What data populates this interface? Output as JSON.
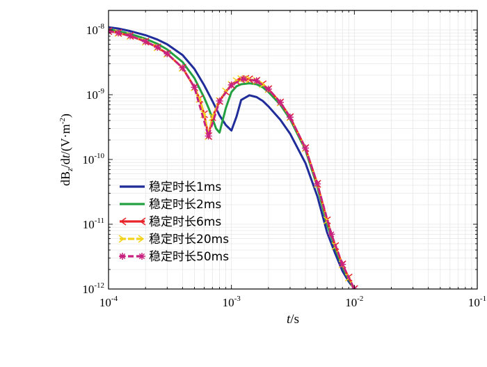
{
  "chart_data": {
    "type": "line",
    "title": "",
    "xlabel": {
      "italic": "t",
      "rest": "/s"
    },
    "ylabel": {
      "a": "dB",
      "sub": "z",
      "b": "/d",
      "c": "t",
      "d": "/(V·m",
      "sup": "-2",
      "e": ")"
    },
    "xscale": "log",
    "yscale": "log",
    "xlim": [
      0.0001,
      0.1
    ],
    "ylim": [
      1e-12,
      2e-08
    ],
    "grid": true,
    "legend_position": "lower-left",
    "x_ticks": [
      {
        "value": 0.0001,
        "base": "10",
        "exp": "-4"
      },
      {
        "value": 0.001,
        "base": "10",
        "exp": "-3"
      },
      {
        "value": 0.01,
        "base": "10",
        "exp": "-2"
      },
      {
        "value": 0.1,
        "base": "10",
        "exp": "-1"
      }
    ],
    "y_ticks": [
      {
        "value": 1e-12,
        "base": "10",
        "exp": "-12"
      },
      {
        "value": 1e-11,
        "base": "10",
        "exp": "-11"
      },
      {
        "value": 1e-10,
        "base": "10",
        "exp": "-10"
      },
      {
        "value": 1e-09,
        "base": "10",
        "exp": "-9"
      },
      {
        "value": 1e-08,
        "base": "10",
        "exp": "-8"
      }
    ],
    "series": [
      {
        "name": "稳定时长1ms",
        "color": "#1f2c9a",
        "marker": "none",
        "x": [
          0.0001,
          0.00012,
          0.00015,
          0.0002,
          0.00025,
          0.0003,
          0.0004,
          0.0005,
          0.0006,
          0.0007,
          0.0008,
          0.0009,
          0.001,
          0.0011,
          0.0012,
          0.0014,
          0.0016,
          0.0018,
          0.002,
          0.0025,
          0.003,
          0.004,
          0.005,
          0.006,
          0.007,
          0.008,
          0.009,
          0.01
        ],
        "y": [
          1.1e-08,
          1.05e-08,
          9.6e-09,
          8.3e-09,
          7.1e-09,
          6e-09,
          4.1e-09,
          2.5e-09,
          1.4e-09,
          8e-10,
          4.8e-10,
          3.4e-10,
          2.8e-10,
          4.6e-10,
          8.3e-10,
          9.8e-10,
          9.2e-10,
          8e-10,
          6.6e-10,
          4.1e-10,
          2.5e-10,
          8.8e-11,
          2.7e-11,
          7.5e-12,
          3.5e-12,
          1.9e-12,
          1.3e-12,
          1e-12
        ]
      },
      {
        "name": "稳定时长2ms",
        "color": "#23a041",
        "marker": "none",
        "x": [
          0.0001,
          0.00012,
          0.00015,
          0.0002,
          0.00025,
          0.0003,
          0.0004,
          0.0005,
          0.0006,
          0.00065,
          0.0007,
          0.00075,
          0.0008,
          0.0009,
          0.001,
          0.0011,
          0.0012,
          0.0014,
          0.0016,
          0.0018,
          0.002,
          0.0025,
          0.003,
          0.004,
          0.005,
          0.006,
          0.007,
          0.008,
          0.009,
          0.01
        ],
        "y": [
          1.02e-08,
          9.6e-09,
          8.7e-09,
          7.3e-09,
          6.1e-09,
          5e-09,
          3.2e-09,
          1.8e-09,
          9e-10,
          6.3e-10,
          4.3e-10,
          3e-10,
          2.6e-10,
          6.2e-10,
          1.1e-09,
          1.35e-09,
          1.45e-09,
          1.5e-09,
          1.45e-09,
          1.3e-09,
          1.1e-09,
          7e-10,
          4.2e-10,
          1.4e-10,
          3.8e-11,
          1e-11,
          4.2e-12,
          2.2e-12,
          1.4e-12,
          1e-12
        ]
      },
      {
        "name": "稳定时长6ms",
        "color": "#e8232a",
        "marker": "left-tri",
        "x": [
          0.0001,
          0.00012,
          0.00015,
          0.0002,
          0.00025,
          0.0003,
          0.0004,
          0.0005,
          0.00055,
          0.0006,
          0.00065,
          0.0007,
          0.0008,
          0.0009,
          0.001,
          0.0011,
          0.0012,
          0.0013,
          0.0014,
          0.0016,
          0.0018,
          0.002,
          0.0025,
          0.003,
          0.004,
          0.005,
          0.006,
          0.007,
          0.008,
          0.009,
          0.01
        ],
        "y": [
          9.6e-09,
          9e-09,
          8.1e-09,
          6.6e-09,
          5.4e-09,
          4.3e-09,
          2.6e-09,
          1.3e-09,
          8.6e-10,
          5e-10,
          2.3e-10,
          4.5e-10,
          8e-10,
          1.12e-09,
          1.42e-09,
          1.62e-09,
          1.74e-09,
          1.76e-09,
          1.73e-09,
          1.64e-09,
          1.45e-09,
          1.22e-09,
          7.6e-10,
          4.5e-10,
          1.5e-10,
          4.2e-11,
          1.15e-11,
          4.6e-12,
          2.4e-12,
          1.5e-12,
          1e-12
        ]
      },
      {
        "name": "稳定时长20ms",
        "color": "#f2d21c",
        "marker": "right-tri",
        "x": [
          0.0001,
          0.00012,
          0.00015,
          0.0002,
          0.00025,
          0.0003,
          0.0004,
          0.0005,
          0.00055,
          0.0006,
          0.00065,
          0.0007,
          0.0008,
          0.0009,
          0.001,
          0.0011,
          0.0012,
          0.0013,
          0.0014,
          0.0016,
          0.0018,
          0.002,
          0.0025,
          0.003,
          0.004,
          0.005,
          0.006,
          0.007,
          0.008,
          0.009,
          0.01
        ],
        "y": [
          9.6e-09,
          9e-09,
          8.1e-09,
          6.6e-09,
          5.4e-09,
          4.3e-09,
          2.6e-09,
          1.3e-09,
          8.6e-10,
          5e-10,
          2.3e-10,
          4.5e-10,
          8e-10,
          1.12e-09,
          1.42e-09,
          1.62e-09,
          1.74e-09,
          1.76e-09,
          1.73e-09,
          1.64e-09,
          1.45e-09,
          1.22e-09,
          7.6e-10,
          4.5e-10,
          1.5e-10,
          4.2e-11,
          1.15e-11,
          4.6e-12,
          2.4e-12,
          1.5e-12,
          1e-12
        ]
      },
      {
        "name": "稳定时长50ms",
        "color": "#c8207e",
        "marker": "asterisk",
        "x": [
          0.0001,
          0.00012,
          0.00015,
          0.0002,
          0.00025,
          0.0003,
          0.0004,
          0.0005,
          0.00065,
          0.0008,
          0.001,
          0.00125,
          0.0016,
          0.002,
          0.0025,
          0.003,
          0.004,
          0.005,
          0.0065,
          0.008,
          0.01
        ],
        "y": [
          9.6e-09,
          9e-09,
          8.1e-09,
          6.6e-09,
          5.4e-09,
          4.3e-09,
          2.6e-09,
          1.3e-09,
          2.3e-10,
          8e-10,
          1.42e-09,
          1.75e-09,
          1.64e-09,
          1.22e-09,
          7.6e-10,
          4.5e-10,
          1.5e-10,
          4.2e-11,
          7e-12,
          2.4e-12,
          1e-12
        ]
      }
    ]
  }
}
